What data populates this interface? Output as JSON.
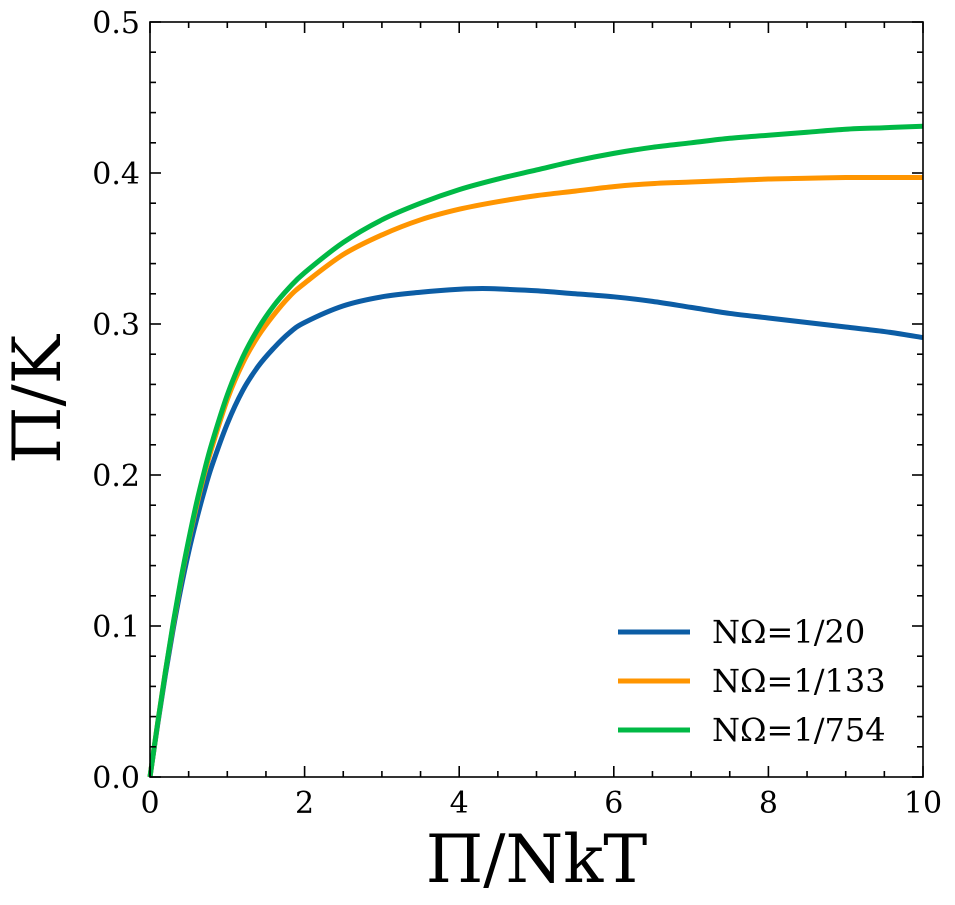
{
  "chart_data": {
    "type": "line",
    "xlabel": "Π/NkT",
    "ylabel": "Π/K",
    "xlim": [
      0,
      10
    ],
    "ylim": [
      0,
      0.5
    ],
    "xticks": [
      "0",
      "2",
      "4",
      "6",
      "8",
      "10"
    ],
    "yticks": [
      "0.0",
      "0.1",
      "0.2",
      "0.3",
      "0.4",
      "0.5"
    ],
    "grid": false,
    "legend_position": "bottom-right",
    "series": [
      {
        "name": "NΩ=1/20",
        "color": "#0C5DA5",
        "x": [
          0,
          0.1,
          0.2,
          0.3,
          0.4,
          0.5,
          0.6,
          0.7,
          0.8,
          1.0,
          1.2,
          1.4,
          1.6,
          1.8,
          2.0,
          2.5,
          3.0,
          3.5,
          4.0,
          4.3,
          4.6,
          5.0,
          5.5,
          6.0,
          6.5,
          7.0,
          7.5,
          8.0,
          8.5,
          9.0,
          9.5,
          10.0
        ],
        "y": [
          0,
          0.035,
          0.068,
          0.098,
          0.125,
          0.149,
          0.17,
          0.189,
          0.206,
          0.234,
          0.256,
          0.272,
          0.284,
          0.294,
          0.301,
          0.312,
          0.318,
          0.321,
          0.323,
          0.3235,
          0.323,
          0.322,
          0.32,
          0.318,
          0.315,
          0.311,
          0.307,
          0.304,
          0.301,
          0.298,
          0.295,
          0.291
        ]
      },
      {
        "name": "NΩ=1/133",
        "color": "#FF9500",
        "x": [
          0,
          0.1,
          0.2,
          0.3,
          0.4,
          0.5,
          0.6,
          0.7,
          0.8,
          1.0,
          1.2,
          1.4,
          1.6,
          1.8,
          2.0,
          2.5,
          3.0,
          3.5,
          4.0,
          4.5,
          5.0,
          5.5,
          6.0,
          6.5,
          7.0,
          7.5,
          8.0,
          8.5,
          9.0,
          9.5,
          10.0
        ],
        "y": [
          0,
          0.036,
          0.07,
          0.101,
          0.13,
          0.156,
          0.179,
          0.2,
          0.218,
          0.25,
          0.274,
          0.292,
          0.306,
          0.318,
          0.327,
          0.346,
          0.359,
          0.369,
          0.376,
          0.381,
          0.385,
          0.388,
          0.391,
          0.393,
          0.394,
          0.395,
          0.396,
          0.3965,
          0.397,
          0.397,
          0.397
        ]
      },
      {
        "name": "NΩ=1/754",
        "color": "#00B945",
        "x": [
          0,
          0.1,
          0.2,
          0.3,
          0.4,
          0.5,
          0.6,
          0.7,
          0.8,
          1.0,
          1.2,
          1.4,
          1.6,
          1.8,
          2.0,
          2.5,
          3.0,
          3.5,
          4.0,
          4.5,
          5.0,
          5.5,
          6.0,
          6.5,
          7.0,
          7.5,
          8.0,
          8.5,
          9.0,
          9.5,
          10.0
        ],
        "y": [
          0,
          0.036,
          0.07,
          0.102,
          0.131,
          0.157,
          0.181,
          0.202,
          0.221,
          0.253,
          0.278,
          0.297,
          0.312,
          0.324,
          0.334,
          0.354,
          0.369,
          0.38,
          0.389,
          0.396,
          0.402,
          0.408,
          0.413,
          0.417,
          0.42,
          0.423,
          0.425,
          0.427,
          0.429,
          0.43,
          0.431
        ]
      }
    ]
  }
}
